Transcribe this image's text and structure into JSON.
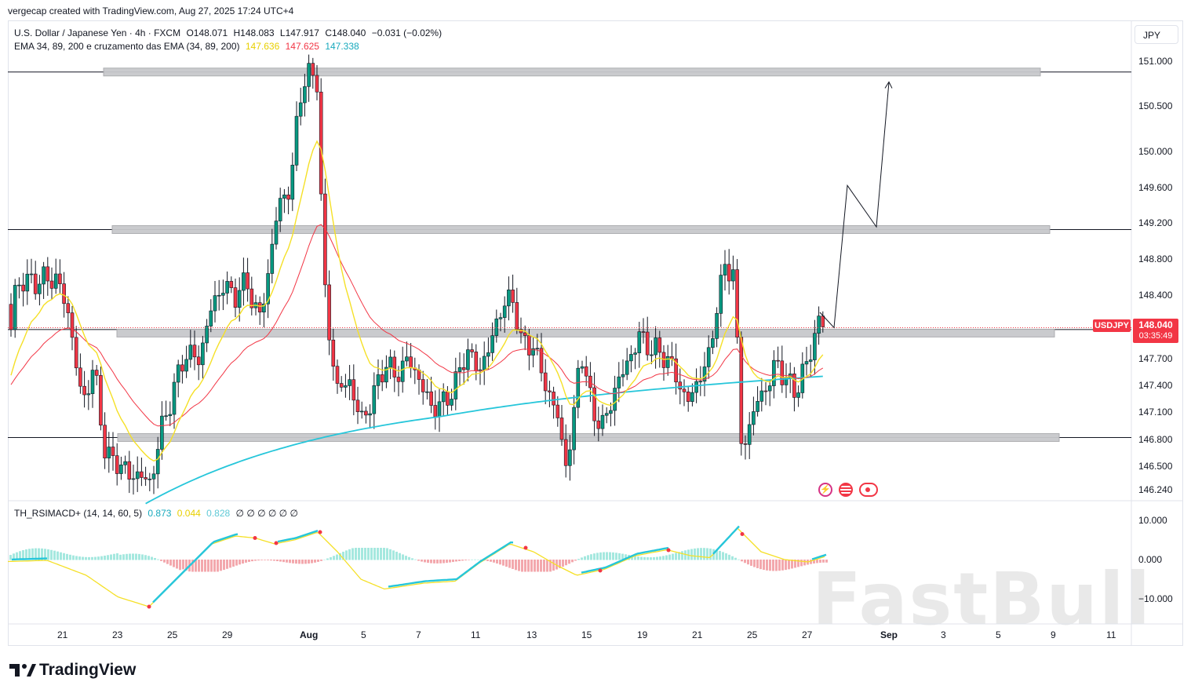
{
  "header": {
    "credit": "vergecap created with TradingView.com, Aug 27, 2025 17:24 UTC+4"
  },
  "legend": {
    "symbol": "U.S. Dollar / Japanese Yen · 4h · FXCM",
    "open": "O148.071",
    "high": "H148.083",
    "low": "L147.917",
    "close": "C148.040",
    "change": "−0.031 (−0.02%)",
    "ema_label": "EMA 34, 89, 200 e cruzamento das EMA (34, 89, 200)",
    "ema34": "147.636",
    "ema89": "147.625",
    "ema200": "147.338",
    "ema34_color": "#f5e027",
    "ema89_color": "#f23645",
    "ema200_color": "#26c6da"
  },
  "indicator": {
    "label": "TH_RSIMACD+ (14, 14, 60, 5)",
    "v1": "0.873",
    "v2": "0.044",
    "v3": "0.828",
    "rest": "∅ ∅ ∅ ∅ ∅ ∅",
    "v1_color": "#26c6da",
    "v2_color": "#f5e027",
    "v3_color": "#80deea"
  },
  "price_axis": {
    "currency": "JPY",
    "symbol_tag": "USDJPY",
    "last_price": "148.040",
    "countdown": "03:35:49",
    "tag_color": "#f23645"
  },
  "watermark": "FastBull",
  "brand": "TradingView",
  "chart_data": {
    "type": "candlestick",
    "timeframe": "4h",
    "y_ticks": [
      151.0,
      150.5,
      150.0,
      149.6,
      149.2,
      148.8,
      148.4,
      147.7,
      147.4,
      147.1,
      146.8,
      146.5,
      146.24
    ],
    "y_tick_labels": [
      "151.000",
      "150.500",
      "150.000",
      "149.600",
      "149.200",
      "148.800",
      "148.400",
      "147.700",
      "147.400",
      "147.100",
      "146.800",
      "146.500",
      "146.240"
    ],
    "indicator_ticks": [
      10,
      0,
      -10
    ],
    "indicator_tick_labels": [
      "10.000",
      "0.000",
      "−10.000"
    ],
    "x_tick_labels": [
      "21",
      "23",
      "25",
      "29",
      "Aug",
      "5",
      "7",
      "11",
      "13",
      "15",
      "19",
      "21",
      "25",
      "27",
      "Sep",
      "3",
      "5",
      "9",
      "11"
    ],
    "horizontal_levels": [
      150.88,
      149.13,
      148.02,
      146.82
    ],
    "zones": [
      {
        "from": "23",
        "to": "Sep",
        "price": 150.88
      },
      {
        "from": "23",
        "to": "Sep",
        "price": 149.13
      },
      {
        "from": "23",
        "to": "Sep",
        "price": 147.98
      },
      {
        "from": "25",
        "to": "Sep",
        "price": 146.82
      }
    ],
    "projection_path": [
      148.21,
      148.04,
      149.62,
      149.16,
      150.77
    ],
    "last_price": 148.04,
    "ema200_last": 147.338,
    "ema89_last": 147.625,
    "ema34_last": 147.636
  }
}
